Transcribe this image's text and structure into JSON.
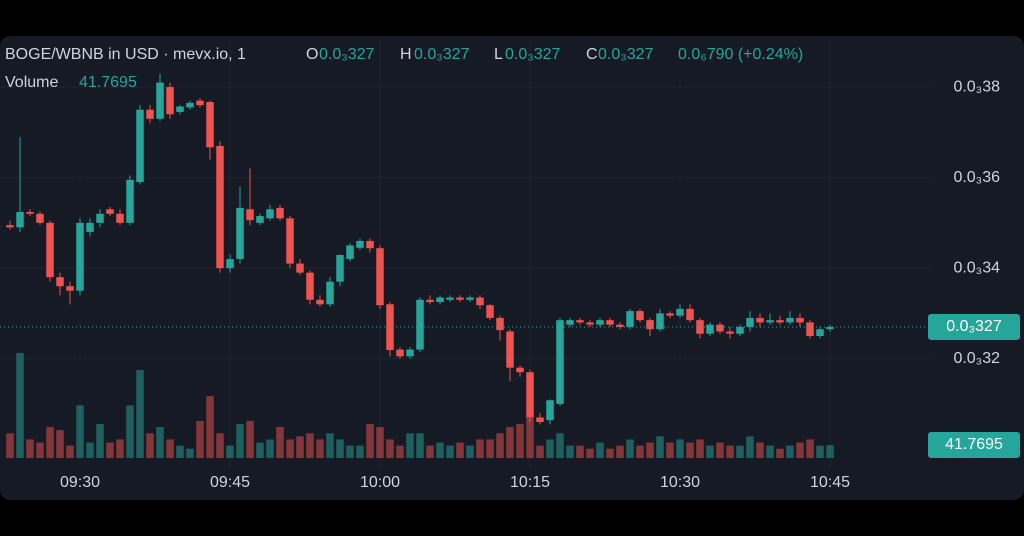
{
  "header": {
    "title": "BOGE/WBNB in USD · mevx.io, 1",
    "ohlc": [
      {
        "key": "O",
        "value": "0.0₃327"
      },
      {
        "key": "H",
        "value": "0.0₃327"
      },
      {
        "key": "L",
        "value": "0.0₃327"
      },
      {
        "key": "C",
        "value": "0.0₃327"
      }
    ],
    "change": "0.0₆790 (+0.24%)",
    "volume_label": "Volume"
  },
  "chart_data": {
    "type": "candlestick",
    "up_color": "#26a69a",
    "down_color": "#ef5350",
    "grid": true,
    "x": [
      "09:23",
      "09:24",
      "09:25",
      "09:26",
      "09:27",
      "09:28",
      "09:29",
      "09:30",
      "09:31",
      "09:32",
      "09:33",
      "09:34",
      "09:35",
      "09:36",
      "09:37",
      "09:38",
      "09:39",
      "09:40",
      "09:41",
      "09:42",
      "09:43",
      "09:44",
      "09:45",
      "09:46",
      "09:47",
      "09:48",
      "09:49",
      "09:50",
      "09:51",
      "09:52",
      "09:53",
      "09:54",
      "09:55",
      "09:56",
      "09:57",
      "09:58",
      "09:59",
      "10:00",
      "10:01",
      "10:02",
      "10:03",
      "10:04",
      "10:05",
      "10:06",
      "10:07",
      "10:08",
      "10:09",
      "10:10",
      "10:11",
      "10:12",
      "10:13",
      "10:14",
      "10:15",
      "10:16",
      "10:17",
      "10:18",
      "10:19",
      "10:20",
      "10:21",
      "10:22",
      "10:23",
      "10:24",
      "10:25",
      "10:26",
      "10:27",
      "10:28",
      "10:29",
      "10:30",
      "10:31",
      "10:32",
      "10:33",
      "10:34",
      "10:35",
      "10:36",
      "10:37",
      "10:38",
      "10:39",
      "10:40",
      "10:41",
      "10:42",
      "10:43",
      "10:44",
      "10:45"
    ],
    "open": [
      0.0003495,
      0.000349,
      0.0003524,
      0.000352,
      0.00035,
      0.000338,
      0.000336,
      0.000335,
      0.000348,
      0.00035,
      0.000353,
      0.000352,
      0.00035,
      0.000359,
      0.000375,
      0.000373,
      0.00038,
      0.0003745,
      0.0003755,
      0.000377,
      0.0003767,
      0.000367,
      0.00034,
      0.000342,
      0.000353,
      0.00035,
      0.000351,
      0.0003533,
      0.000351,
      0.000341,
      0.000339,
      0.000333,
      0.000332,
      0.000337,
      0.000342,
      0.0003445,
      0.000346,
      0.0003444,
      0.000332,
      0.000322,
      0.0003205,
      0.000322,
      0.000333,
      0.0003325,
      0.000333,
      0.0003335,
      0.000333,
      0.0003335,
      0.0003318,
      0.000329,
      0.000326,
      0.000318,
      0.000317,
      0.000307,
      0.0003064,
      0.00031,
      0.0003275,
      0.0003285,
      0.000328,
      0.0003275,
      0.0003285,
      0.0003275,
      0.000327,
      0.0003305,
      0.0003285,
      0.0003265,
      0.00033,
      0.0003295,
      0.000331,
      0.0003285,
      0.0003255,
      0.0003275,
      0.000326,
      0.0003255,
      0.000327,
      0.000329,
      0.000328,
      0.0003285,
      0.000328,
      0.000329,
      0.000328,
      0.000325,
      0.0003265
    ],
    "high": [
      0.0003505,
      0.000369,
      0.000353,
      0.0003525,
      0.0003505,
      0.000339,
      0.000337,
      0.000351,
      0.000351,
      0.000353,
      0.0003535,
      0.000353,
      0.0003605,
      0.000376,
      0.000376,
      0.000383,
      0.000381,
      0.000376,
      0.000377,
      0.0003775,
      0.000377,
      0.000368,
      0.000343,
      0.000358,
      0.000362,
      0.000352,
      0.000354,
      0.000354,
      0.0003515,
      0.000342,
      0.0003395,
      0.000334,
      0.000338,
      0.000343,
      0.0003455,
      0.0003465,
      0.0003465,
      0.000345,
      0.0003325,
      0.0003225,
      0.0003225,
      0.0003335,
      0.000334,
      0.000334,
      0.000334,
      0.000334,
      0.000334,
      0.000334,
      0.000332,
      0.0003295,
      0.0003265,
      0.0003185,
      0.0003175,
      0.000308,
      0.000311,
      0.000329,
      0.000329,
      0.000329,
      0.0003285,
      0.000329,
      0.000329,
      0.000328,
      0.000331,
      0.000331,
      0.000329,
      0.000331,
      0.0003305,
      0.000332,
      0.000332,
      0.000329,
      0.000328,
      0.000328,
      0.000327,
      0.0003275,
      0.0003305,
      0.00033,
      0.00033,
      0.0003295,
      0.0003305,
      0.00033,
      0.0003285,
      0.000327,
      0.0003275
    ],
    "low": [
      0.0003485,
      0.000348,
      0.0003515,
      0.0003495,
      0.000337,
      0.000334,
      0.000332,
      0.000334,
      0.000347,
      0.000349,
      0.0003515,
      0.0003495,
      0.0003495,
      0.0003585,
      0.000372,
      0.0003725,
      0.000373,
      0.000374,
      0.000375,
      0.0003755,
      0.000364,
      0.000339,
      0.000339,
      0.000341,
      0.0003495,
      0.0003495,
      0.0003505,
      0.0003505,
      0.00034,
      0.0003385,
      0.000332,
      0.0003315,
      0.0003315,
      0.000336,
      0.0003415,
      0.000344,
      0.0003435,
      0.000331,
      0.0003205,
      0.00032,
      0.00032,
      0.0003215,
      0.000332,
      0.000332,
      0.0003325,
      0.0003325,
      0.0003325,
      0.000331,
      0.0003285,
      0.000324,
      0.000315,
      0.000316,
      0.000306,
      0.0003055,
      0.0003055,
      0.0003095,
      0.000327,
      0.0003275,
      0.000327,
      0.000327,
      0.000327,
      0.0003265,
      0.0003265,
      0.000328,
      0.000325,
      0.000326,
      0.000329,
      0.000329,
      0.000328,
      0.0003245,
      0.000325,
      0.0003255,
      0.0003245,
      0.000325,
      0.000326,
      0.000327,
      0.0003275,
      0.0003275,
      0.0003275,
      0.000327,
      0.0003245,
      0.0003245,
      0.000326
    ],
    "close": [
      0.000349,
      0.0003524,
      0.000352,
      0.00035,
      0.000338,
      0.000336,
      0.000335,
      0.00035,
      0.00035,
      0.000352,
      0.000352,
      0.00035,
      0.0003595,
      0.000375,
      0.000373,
      0.000381,
      0.000374,
      0.0003757,
      0.0003765,
      0.000376,
      0.0003667,
      0.00034,
      0.000342,
      0.0003533,
      0.0003506,
      0.0003515,
      0.000353,
      0.000351,
      0.000341,
      0.000339,
      0.000333,
      0.000332,
      0.000337,
      0.0003429,
      0.000345,
      0.000346,
      0.0003444,
      0.0003318,
      0.0003219,
      0.0003205,
      0.000322,
      0.000333,
      0.0003325,
      0.0003335,
      0.0003335,
      0.000333,
      0.0003335,
      0.0003318,
      0.000329,
      0.0003263,
      0.000318,
      0.000317,
      0.000307,
      0.000306,
      0.0003108,
      0.0003285,
      0.0003285,
      0.000328,
      0.0003275,
      0.0003285,
      0.0003275,
      0.000327,
      0.0003305,
      0.0003285,
      0.0003265,
      0.00033,
      0.0003295,
      0.000331,
      0.0003285,
      0.0003255,
      0.0003275,
      0.000326,
      0.0003255,
      0.000327,
      0.000329,
      0.000328,
      0.0003285,
      0.000328,
      0.000329,
      0.000328,
      0.000325,
      0.0003265,
      0.000327
    ],
    "volumes": [
      80,
      340,
      60,
      50,
      100,
      90,
      40,
      170,
      50,
      110,
      50,
      60,
      170,
      285,
      80,
      100,
      60,
      40,
      30,
      120,
      200,
      80,
      40,
      110,
      120,
      50,
      60,
      100,
      60,
      70,
      80,
      60,
      80,
      60,
      40,
      40,
      110,
      100,
      60,
      40,
      80,
      80,
      40,
      50,
      40,
      50,
      40,
      60,
      60,
      80,
      100,
      110,
      130,
      40,
      60,
      80,
      40,
      40,
      30,
      50,
      30,
      40,
      60,
      40,
      50,
      70,
      50,
      60,
      50,
      60,
      40,
      50,
      40,
      40,
      70,
      50,
      40,
      30,
      40,
      50,
      60,
      40,
      41.7695
    ],
    "volume_lim": [
      0,
      1200
    ],
    "ylim": [
      0.0002976,
      0.0003904
    ],
    "yticks": [
      {
        "value": 0.00038,
        "label": "0.0₃38"
      },
      {
        "value": 0.00036,
        "label": "0.0₃36"
      },
      {
        "value": 0.00034,
        "label": "0.0₃34"
      },
      {
        "value": 0.00032,
        "label": "0.0₃32"
      }
    ],
    "xlim": [
      "09:22",
      "10:55"
    ],
    "xticks": [
      "09:30",
      "09:45",
      "10:00",
      "10:15",
      "10:30",
      "10:45"
    ],
    "last_price": {
      "value": 0.000327,
      "label": "0.0₃327"
    }
  }
}
